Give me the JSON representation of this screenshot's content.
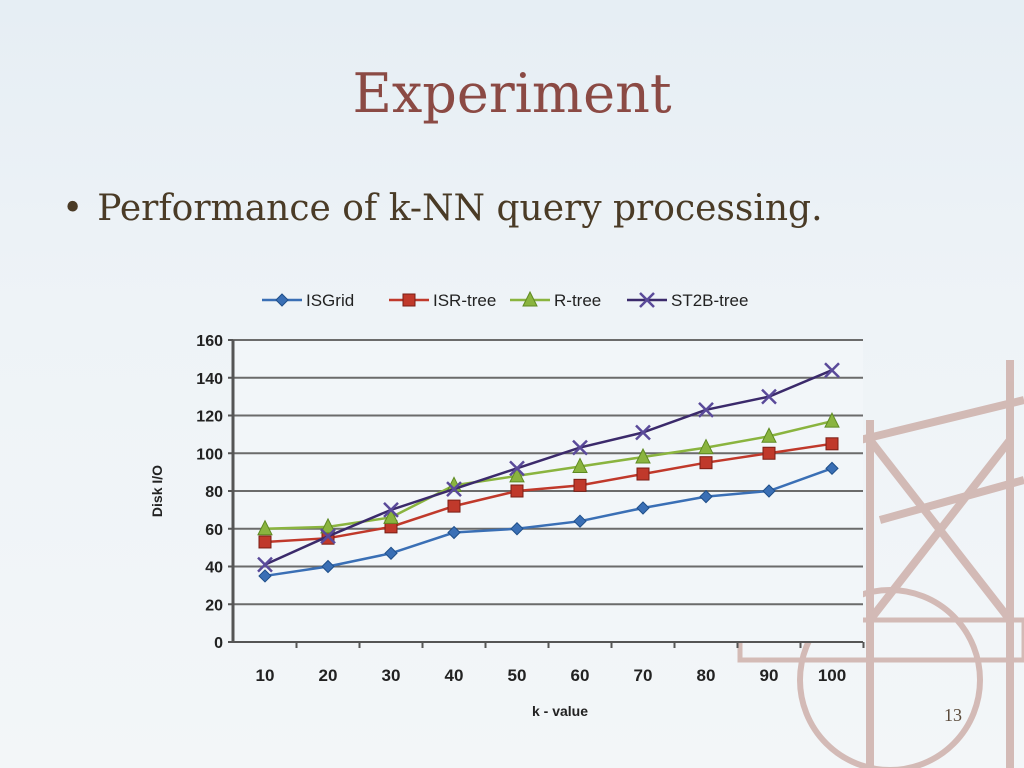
{
  "slide": {
    "title": "Experiment",
    "bullet": "Performance of k-NN query processing.",
    "page_number": "13"
  },
  "chart_data": {
    "type": "line",
    "title": "",
    "xlabel": "k - value",
    "ylabel": "Disk I/O",
    "categories": [
      "10",
      "20",
      "30",
      "40",
      "50",
      "60",
      "70",
      "80",
      "90",
      "100"
    ],
    "ylim": [
      0,
      160
    ],
    "yticks": [
      "0",
      "20",
      "40",
      "60",
      "80",
      "100",
      "120",
      "140",
      "160"
    ],
    "grid": true,
    "legend_position": "top",
    "series": [
      {
        "name": "ISGrid",
        "color": "#3a6fb5",
        "marker": "diamond",
        "values": [
          35,
          40,
          47,
          58,
          60,
          64,
          71,
          77,
          80,
          92
        ]
      },
      {
        "name": "ISR-tree",
        "color": "#c0392b",
        "marker": "square",
        "values": [
          53,
          55,
          61,
          72,
          80,
          83,
          89,
          95,
          100,
          105
        ]
      },
      {
        "name": "R-tree",
        "color": "#8ab43f",
        "marker": "triangle",
        "values": [
          60,
          61,
          66,
          83,
          88,
          93,
          98,
          103,
          109,
          117
        ]
      },
      {
        "name": "ST2B-tree",
        "color": "#3b2a6b",
        "marker": "x",
        "values": [
          41,
          56,
          70,
          81,
          92,
          103,
          111,
          123,
          130,
          144
        ]
      }
    ]
  }
}
